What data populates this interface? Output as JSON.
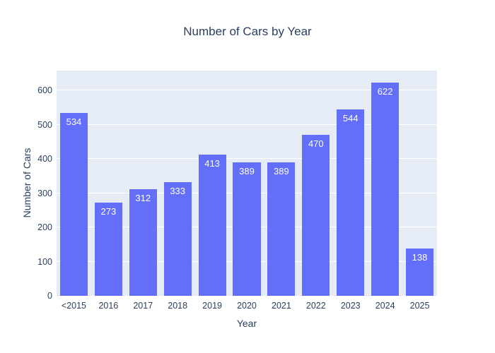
{
  "chart_data": {
    "type": "bar",
    "title": "Number of Cars by Year",
    "xlabel": "Year",
    "ylabel": "Number of Cars",
    "categories": [
      "<2015",
      "2016",
      "2017",
      "2018",
      "2019",
      "2020",
      "2021",
      "2022",
      "2023",
      "2024",
      "2025"
    ],
    "values": [
      534,
      273,
      312,
      333,
      413,
      389,
      389,
      470,
      544,
      622,
      138
    ],
    "bar_labels": [
      "534",
      "273",
      "312",
      "333",
      "413",
      "389",
      "389",
      "470",
      "544",
      "622",
      "138"
    ],
    "bar_label_position": "inside-top",
    "ylim": [
      0,
      658
    ],
    "yticks": [
      0,
      100,
      200,
      300,
      400,
      500,
      600
    ],
    "grid": "horizontal",
    "legend": "none",
    "colors": {
      "bar": "#636efa",
      "bar_label_text": "#ffffff",
      "plot_background": "#e5ecf6",
      "gridline": "#ffffff",
      "text": "#2a3f5f",
      "page_background": "#ffffff"
    }
  }
}
